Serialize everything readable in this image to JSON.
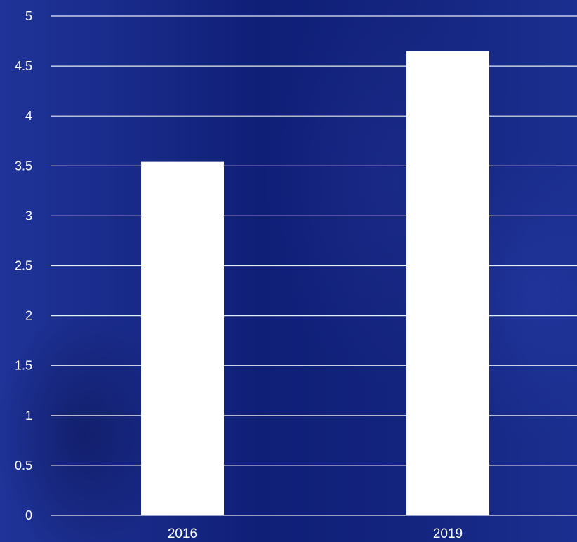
{
  "chart_data": {
    "type": "bar",
    "categories": [
      "2016",
      "2019"
    ],
    "values": [
      3.54,
      4.65
    ],
    "ylim": [
      0,
      5
    ],
    "yticks": [
      "0",
      "0.5",
      "1",
      "1.5",
      "2",
      "2.5",
      "3",
      "3.5",
      "4",
      "4.5",
      "5"
    ],
    "grid": true,
    "title": "",
    "xlabel": "",
    "ylabel": ""
  },
  "colors": {
    "background": "#14267f",
    "bar": "#ffffff",
    "text": "#ffffff",
    "grid": "#ffffff"
  }
}
